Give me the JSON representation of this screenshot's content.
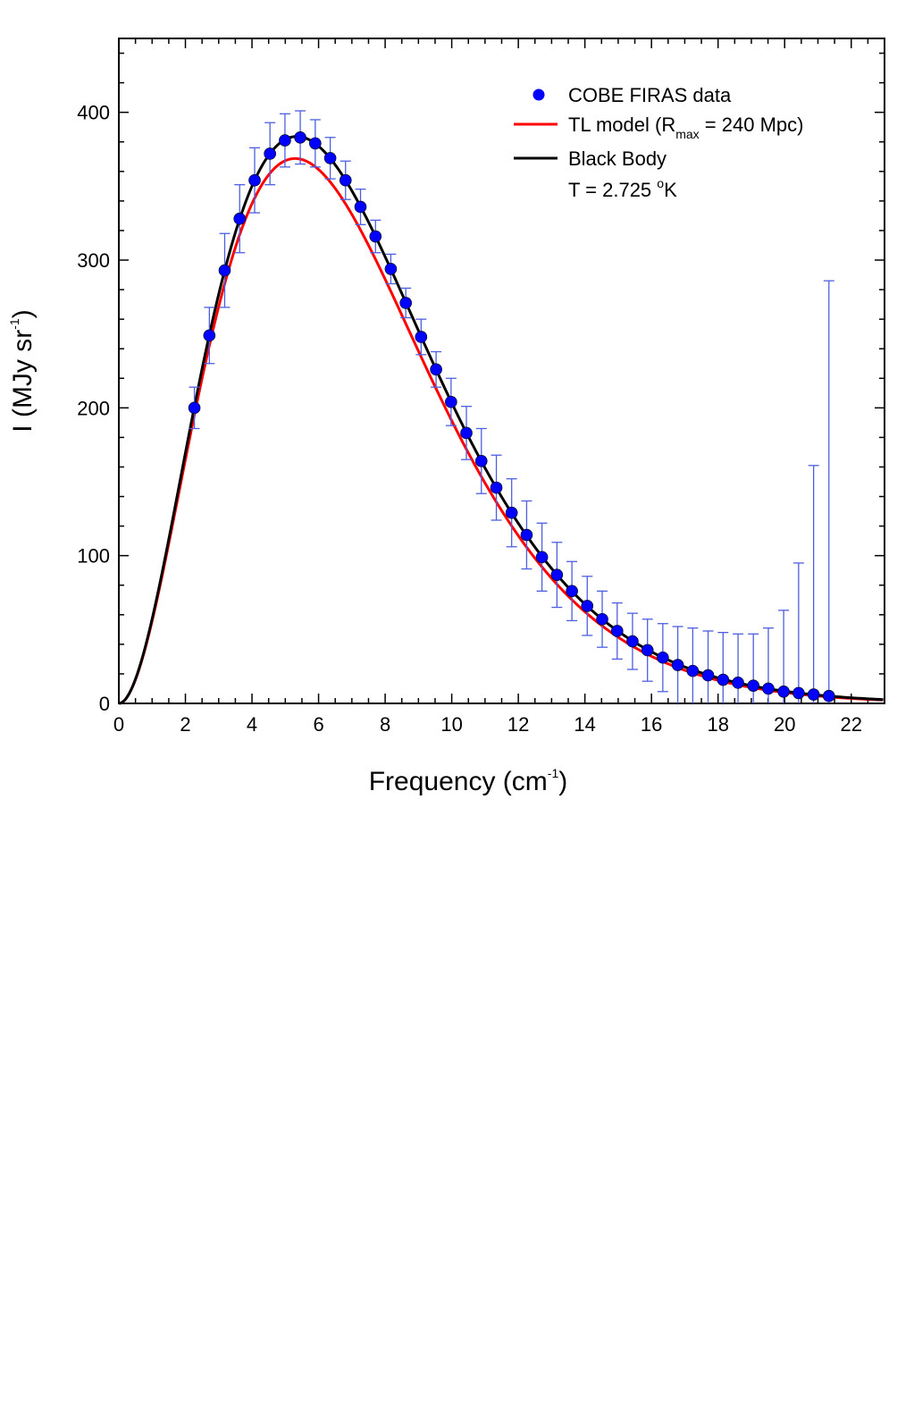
{
  "chart_data": {
    "type": "scatter",
    "xlabel": "Frequency (cm",
    "xlabel_sup": "-1",
    "xlabel_close": ")",
    "ylabel": "I (MJy sr",
    "ylabel_sup": "-1",
    "ylabel_close": ")",
    "xlim": [
      0,
      23
    ],
    "ylim": [
      0,
      450
    ],
    "x_ticks": [
      0,
      2,
      4,
      6,
      8,
      10,
      12,
      14,
      16,
      18,
      20,
      22
    ],
    "y_ticks": [
      0,
      100,
      200,
      300,
      400
    ],
    "legend_position": "top-right",
    "colors": {
      "data": "#0000ff",
      "data_edge": "#000000",
      "errorbar": "#4d5fe0",
      "tl_model": "#ff0000",
      "black_body": "#000000"
    },
    "legend": {
      "data": "COBE FIRAS data",
      "tl_prefix": "TL model (R",
      "tl_sub": "max",
      "tl_suffix": " = 240 Mpc)",
      "bb": "Black Body",
      "temp_prefix": "T = 2.725 ",
      "temp_sup": "o",
      "temp_suffix": "K"
    },
    "series": [
      {
        "name": "COBE FIRAS data",
        "kind": "scatter_errorbar",
        "x": [
          2.27,
          2.72,
          3.18,
          3.63,
          4.08,
          4.54,
          4.99,
          5.45,
          5.9,
          6.35,
          6.81,
          7.26,
          7.71,
          8.17,
          8.62,
          9.08,
          9.53,
          9.98,
          10.44,
          10.89,
          11.34,
          11.8,
          12.25,
          12.71,
          13.16,
          13.61,
          14.07,
          14.52,
          14.97,
          15.43,
          15.88,
          16.34,
          16.79,
          17.24,
          17.7,
          18.15,
          18.6,
          19.06,
          19.51,
          19.97,
          20.42,
          20.87,
          21.33
        ],
        "y": [
          200,
          249,
          293,
          328,
          354,
          372,
          381,
          383,
          379,
          369,
          354,
          336,
          316,
          294,
          271,
          248,
          226,
          204,
          183,
          164,
          146,
          129,
          114,
          99,
          87,
          76,
          66,
          57,
          49,
          42,
          36,
          31,
          26,
          22,
          19,
          16,
          14,
          12,
          10,
          8,
          7,
          6,
          5
        ],
        "err": [
          14,
          19,
          25,
          23,
          22,
          21,
          18,
          18,
          16,
          14,
          13,
          12,
          11,
          10,
          10,
          12,
          12,
          16,
          18,
          22,
          22,
          23,
          23,
          23,
          22,
          20,
          20,
          19,
          19,
          19,
          21,
          23,
          26,
          29,
          30,
          32,
          33,
          35,
          41,
          55,
          88,
          155,
          281
        ]
      },
      {
        "name": "TL model (Rmax = 240 Mpc)",
        "kind": "line",
        "model": "planck",
        "temperature_K": 2.7,
        "scale": 0.988
      },
      {
        "name": "Black Body",
        "kind": "line",
        "model": "planck",
        "temperature_K": 2.725,
        "scale": 1.0
      }
    ]
  }
}
